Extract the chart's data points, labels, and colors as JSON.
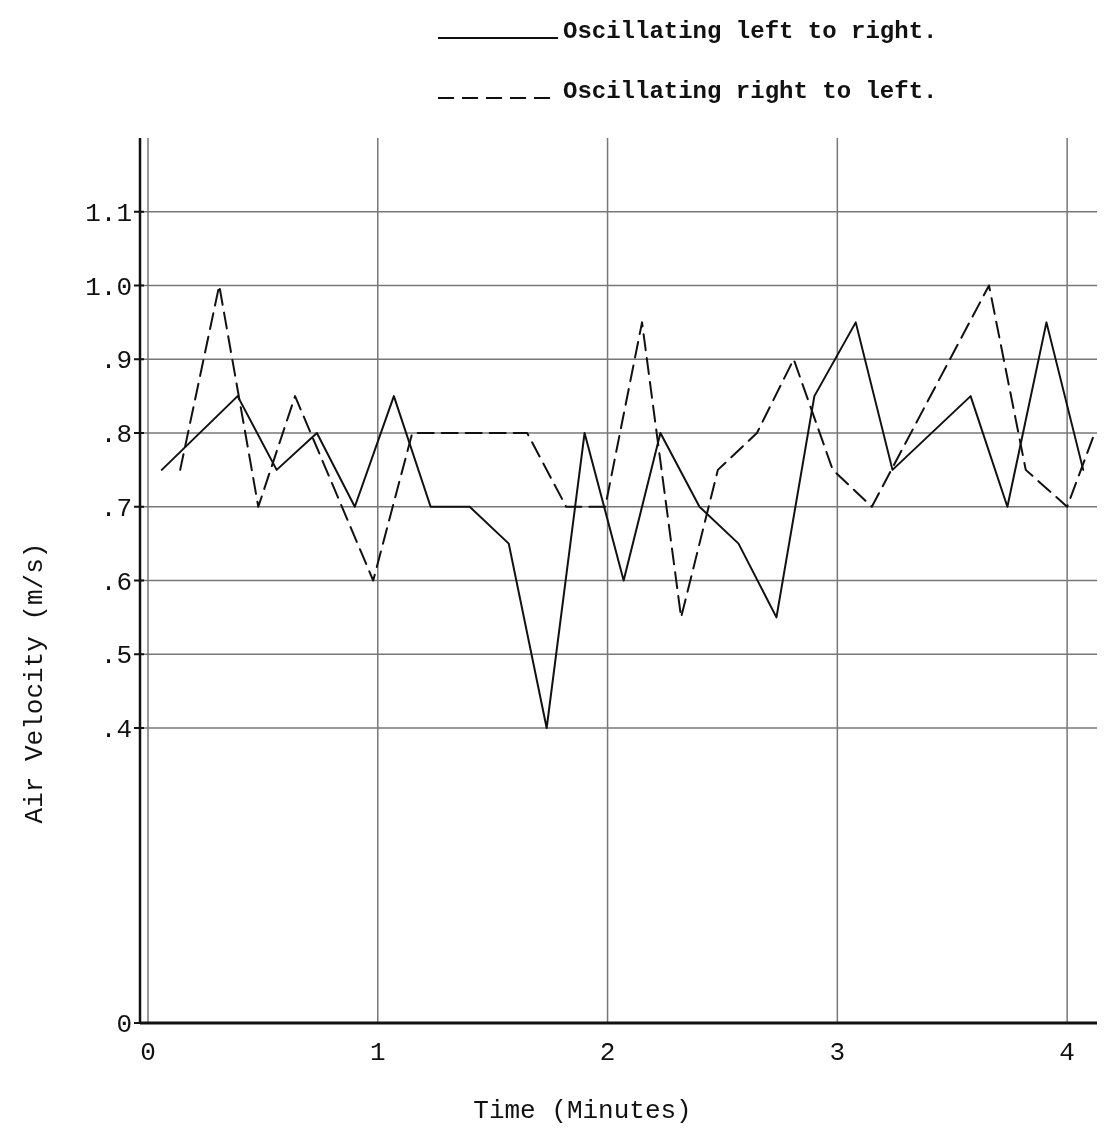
{
  "chart_data": {
    "type": "line",
    "xlabel": "Time (Minutes)",
    "ylabel": "Air Velocity (m/s)",
    "xlim": [
      0,
      4.13
    ],
    "xticks": [
      0,
      1,
      2,
      3,
      4
    ],
    "ylim": [
      0,
      1.2
    ],
    "yticks": [
      {
        "value": 0,
        "label": "0"
      },
      {
        "value": 0.4,
        "label": ".4"
      },
      {
        "value": 0.5,
        "label": ".5"
      },
      {
        "value": 0.6,
        "label": ".6"
      },
      {
        "value": 0.7,
        "label": ".7"
      },
      {
        "value": 0.8,
        "label": ".8"
      },
      {
        "value": 0.9,
        "label": ".9"
      },
      {
        "value": 1.0,
        "label": "1.0"
      },
      {
        "value": 1.1,
        "label": "1.1"
      }
    ],
    "grid": true,
    "legend": "top right",
    "marker": "none",
    "series": [
      {
        "name": "Oscillating left to right.",
        "color": "#111111",
        "line_style": "solid",
        "x": [
          0.06,
          0.39,
          0.56,
          0.735,
          0.9,
          1.07,
          1.23,
          1.4,
          1.57,
          1.735,
          1.9,
          2.07,
          2.23,
          2.4,
          2.57,
          2.735,
          2.9,
          3.08,
          3.24,
          3.58,
          3.74,
          3.91,
          4.07
        ],
        "values": [
          0.75,
          0.85,
          0.75,
          0.8,
          0.7,
          0.85,
          0.7,
          0.7,
          0.65,
          0.4,
          0.8,
          0.6,
          0.8,
          0.7,
          0.65,
          0.55,
          0.85,
          0.95,
          0.75,
          0.85,
          0.7,
          0.95,
          0.75
        ]
      },
      {
        "name": "Oscillating right to left.",
        "color": "#111111",
        "line_style": "dashed",
        "x": [
          0.14,
          0.31,
          0.48,
          0.64,
          0.98,
          1.15,
          1.65,
          1.82,
          1.99,
          2.15,
          2.32,
          2.48,
          2.65,
          2.81,
          2.98,
          3.15,
          3.66,
          3.82,
          4.0,
          4.12
        ],
        "values": [
          0.75,
          1.0,
          0.7,
          0.85,
          0.6,
          0.8,
          0.8,
          0.7,
          0.7,
          0.95,
          0.55,
          0.75,
          0.8,
          0.9,
          0.75,
          0.7,
          1.0,
          0.75,
          0.7,
          0.8
        ]
      }
    ]
  }
}
